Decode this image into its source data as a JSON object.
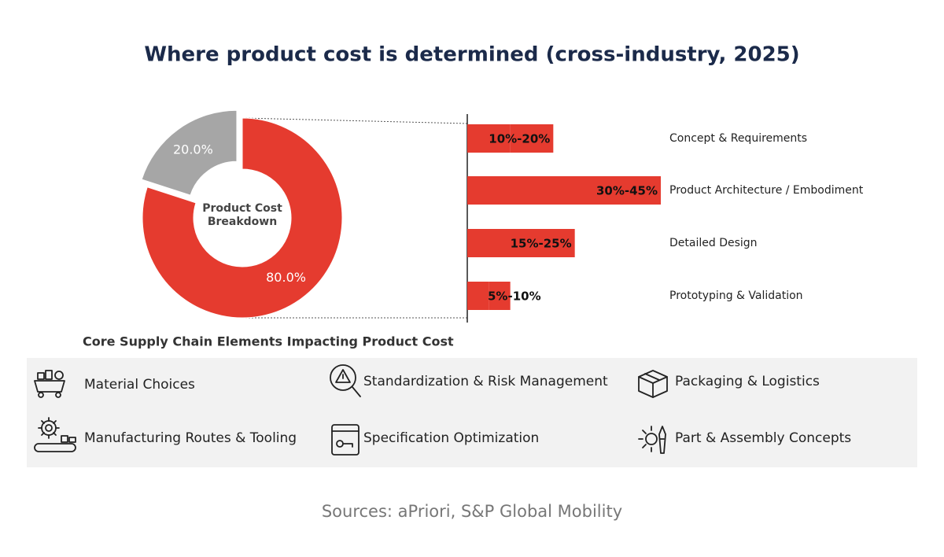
{
  "title": "Where product cost is determined (cross-industry, 2025)",
  "chart_data": [
    {
      "type": "pie",
      "center_label": "Product Cost Breakdown",
      "values": [
        80,
        20
      ],
      "value_labels": [
        "80.0%",
        "20.0%"
      ],
      "colors": [
        "#e53b2f",
        "#a6a6a6"
      ],
      "explode": [
        false,
        true
      ]
    },
    {
      "type": "bar",
      "orientation": "horizontal",
      "categories": [
        "Concept & Requirements",
        "Product Architecture / Embodiment",
        "Detailed Design",
        "Prototyping & Validation"
      ],
      "values": [
        [
          10,
          20
        ],
        [
          30,
          45
        ],
        [
          15,
          25
        ],
        [
          5,
          10
        ]
      ],
      "value_labels": [
        "10%-20%",
        "30%-45%",
        "15%-25%",
        "5%-10%"
      ],
      "color": "#e53b2f"
    }
  ],
  "supply_chain": {
    "title": "Core Supply Chain Elements Impacting Product Cost",
    "items": [
      "Material Choices",
      "Standardization & Risk Management",
      "Packaging & Logistics",
      "Manufacturing Routes & Tooling",
      "Specification Optimization",
      "Part & Assembly Concepts"
    ]
  },
  "source": "Sources: aPriori, S&P Global Mobility"
}
